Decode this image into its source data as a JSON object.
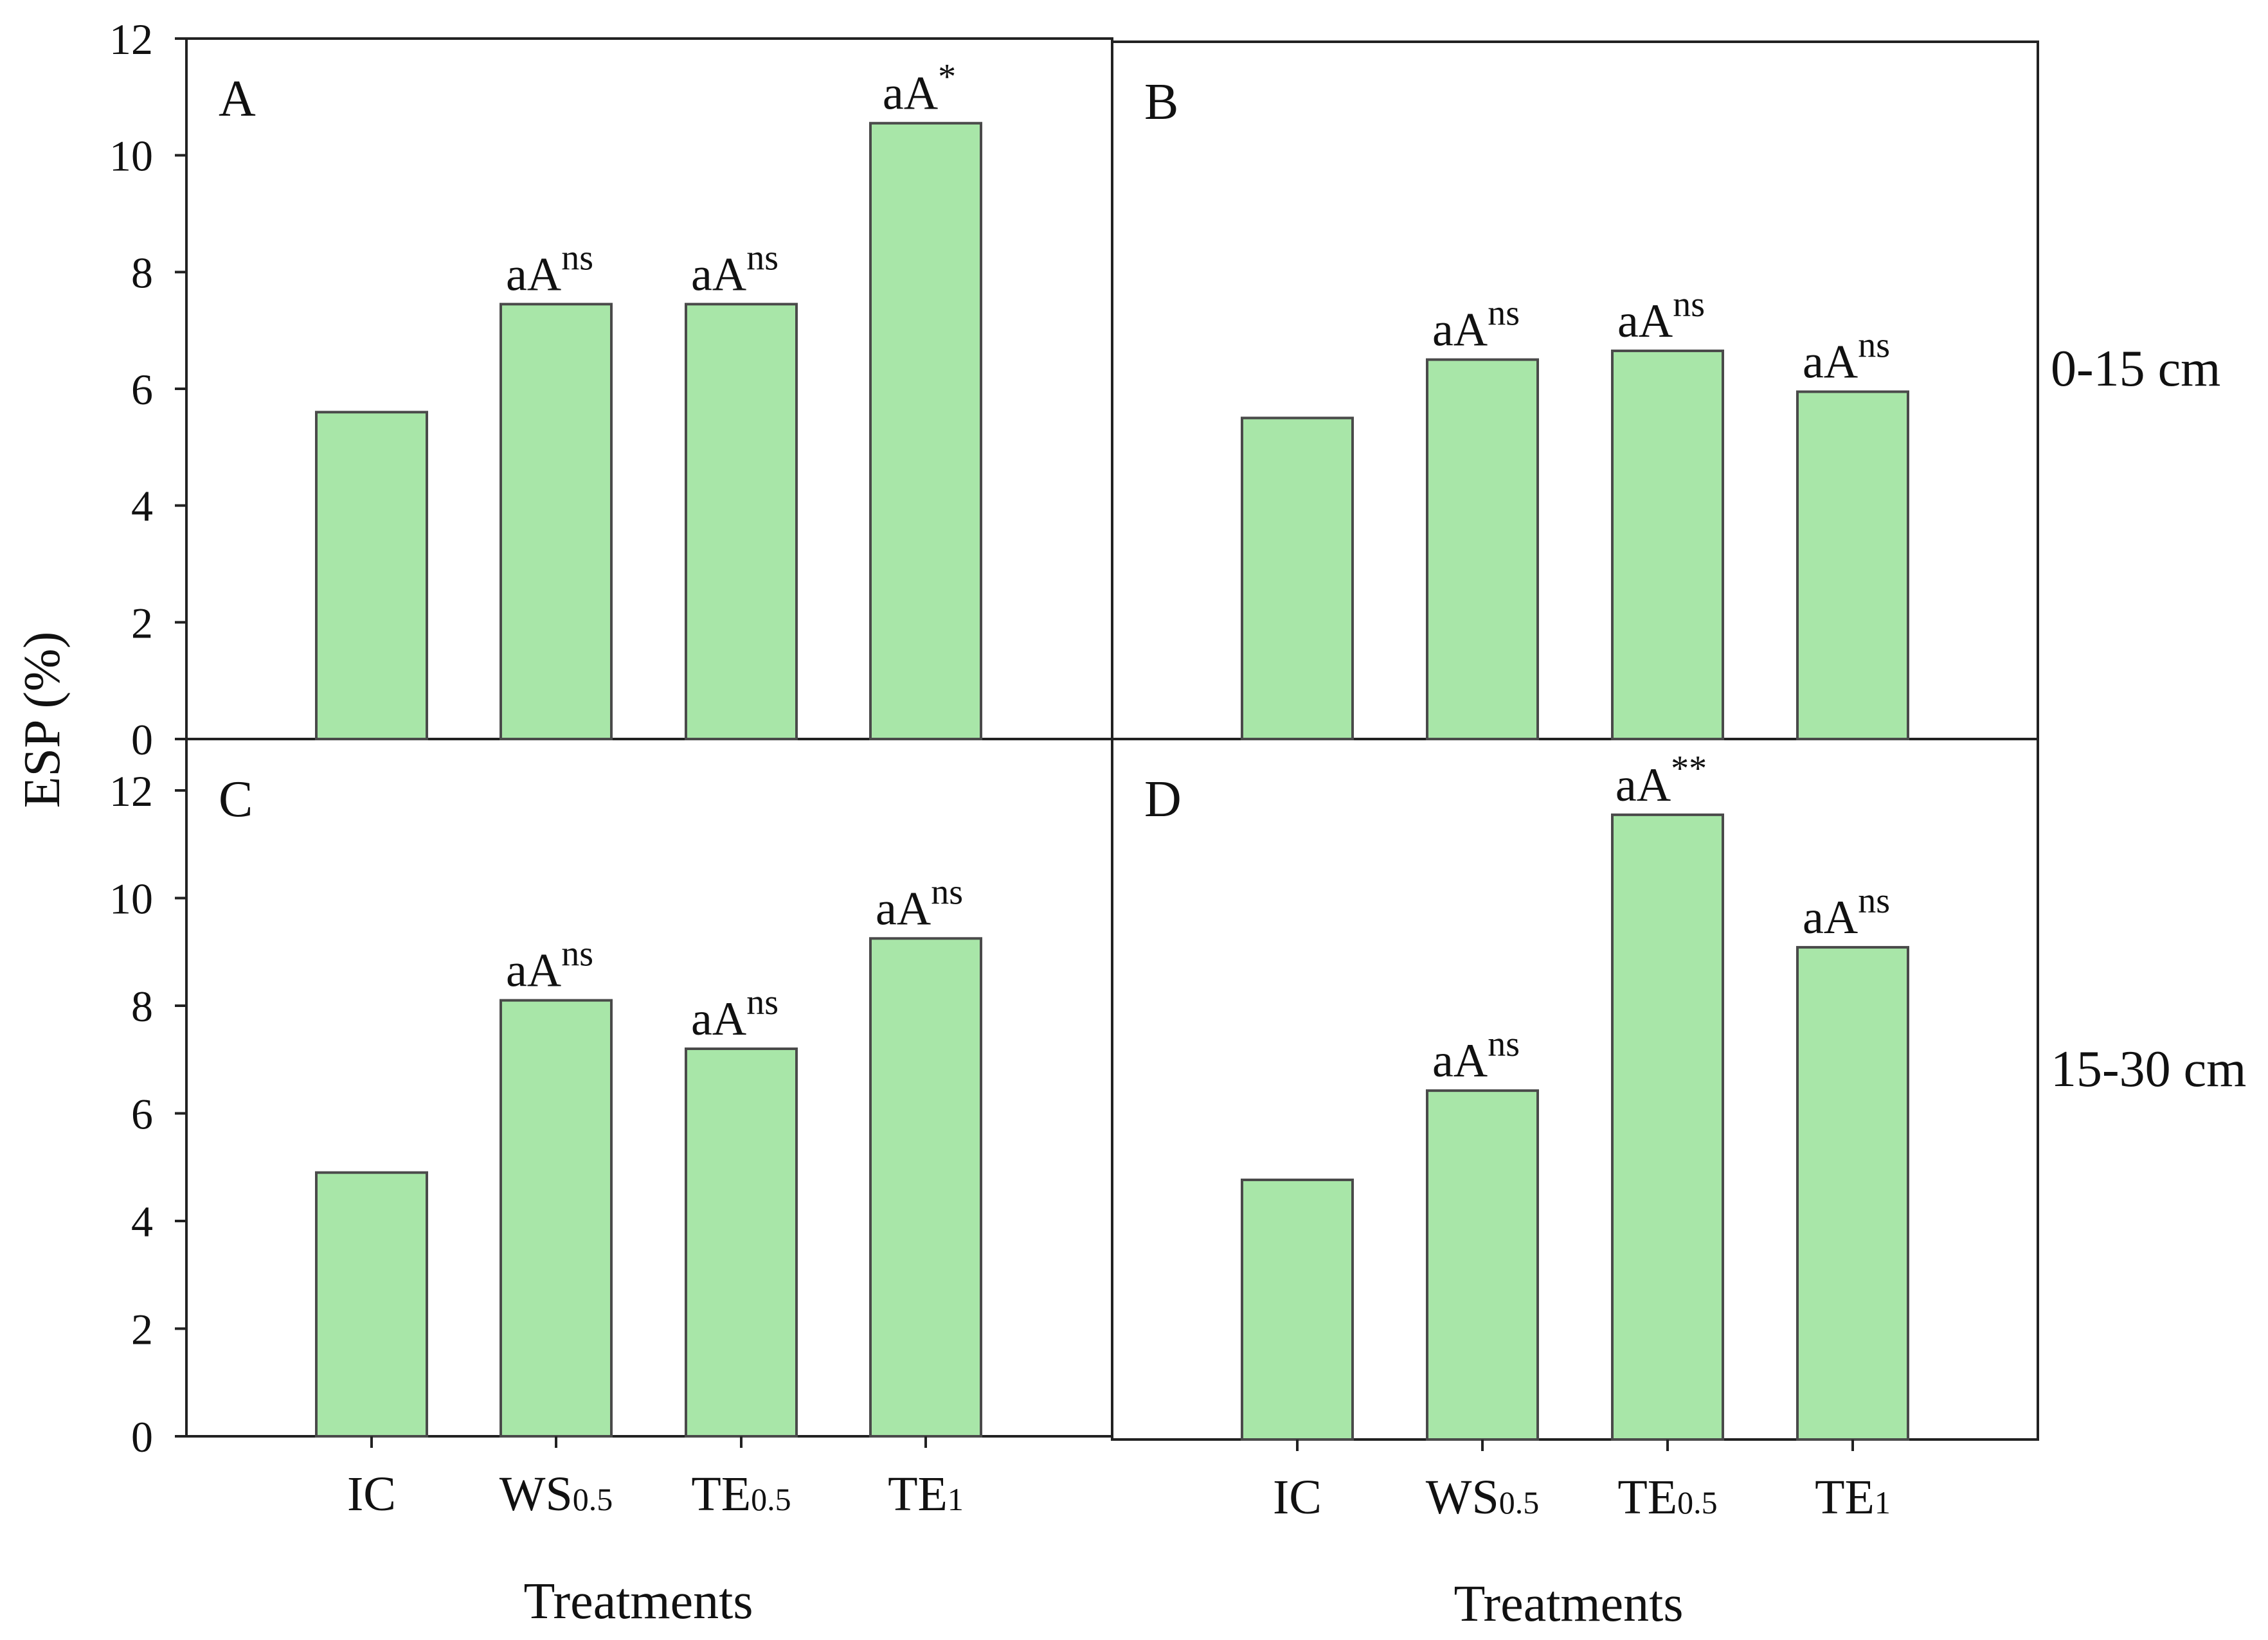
{
  "chart_data": {
    "type": "bar",
    "ylabel": "ESP (%)",
    "xlabel": "Treatments",
    "ylim": [
      0,
      12
    ],
    "yticks": [
      "0",
      "2",
      "4",
      "6",
      "8",
      "10",
      "12"
    ],
    "categories": [
      {
        "main": "IC",
        "sub": ""
      },
      {
        "main": "WS",
        "sub": "0.5"
      },
      {
        "main": "TE",
        "sub": "0.5"
      },
      {
        "main": "TE",
        "sub": "1"
      }
    ],
    "bar_color": "#a8e6a8",
    "bar_stroke": "#4a4a4a",
    "depth_labels": [
      "0-15 cm",
      "15-30 cm"
    ],
    "panels": [
      {
        "label": "A",
        "values": [
          5.6,
          7.45,
          7.45,
          10.55
        ],
        "annotations": [
          null,
          {
            "text": "aA",
            "sup": "ns"
          },
          {
            "text": "aA",
            "sup": "ns"
          },
          {
            "text": "aA",
            "sup": "*"
          }
        ]
      },
      {
        "label": "B",
        "values": [
          5.5,
          6.5,
          6.65,
          5.95
        ],
        "annotations": [
          null,
          {
            "text": "aA",
            "sup": "ns"
          },
          {
            "text": "aA",
            "sup": "ns"
          },
          {
            "text": "aA",
            "sup": "ns"
          }
        ]
      },
      {
        "label": "C",
        "values": [
          4.9,
          8.1,
          7.2,
          9.25
        ],
        "annotations": [
          null,
          {
            "text": "aA",
            "sup": "ns"
          },
          {
            "text": "aA",
            "sup": "ns"
          },
          {
            "text": "aA",
            "sup": "ns"
          }
        ]
      },
      {
        "label": "D",
        "values": [
          4.8,
          6.45,
          11.55,
          9.1
        ],
        "annotations": [
          null,
          {
            "text": "aA",
            "sup": "ns"
          },
          {
            "text": "aA",
            "sup": "**"
          },
          {
            "text": "aA",
            "sup": "ns"
          }
        ]
      }
    ]
  }
}
